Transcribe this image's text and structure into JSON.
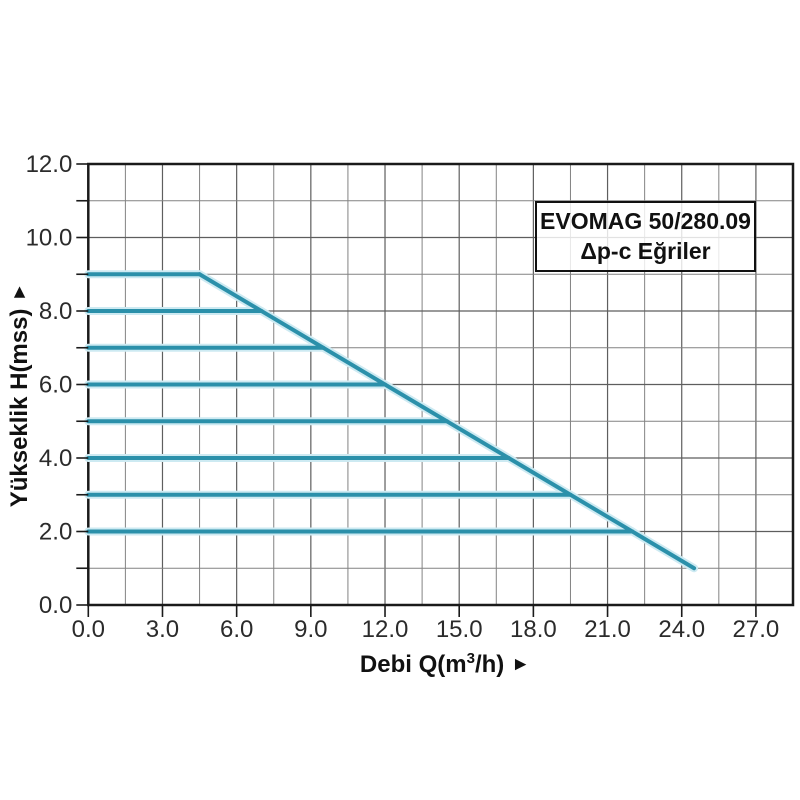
{
  "page": {
    "background": "#ffffff"
  },
  "chart_data": {
    "type": "line",
    "title": "",
    "legend": {
      "position": "top-right",
      "lines": [
        "EVOMAG 50/280.09",
        "Δp-c Eğriler"
      ]
    },
    "xlabel": {
      "prefix": "Debi Q(m",
      "sup": "3",
      "suffix": "/h)",
      "arrow": "►"
    },
    "ylabel": {
      "text": "Yükseklik H(mss)",
      "arrow": "►"
    },
    "axes": {
      "xlim": [
        0,
        28.5
      ],
      "ylim": [
        0,
        12
      ],
      "x_major_ticks": [
        0,
        3,
        6,
        9,
        12,
        15,
        18,
        21,
        24,
        27
      ],
      "x_major_labels": [
        "0.0",
        "3.0",
        "6.0",
        "9.0",
        "12.0",
        "15.0",
        "18.0",
        "21.0",
        "24.0",
        "27.0"
      ],
      "x_minor_step": 1.5,
      "y_major_ticks": [
        0,
        2,
        4,
        6,
        8,
        10,
        12
      ],
      "y_major_labels": [
        "0.0",
        "2.0",
        "4.0",
        "6.0",
        "8.0",
        "10.0",
        "12.0"
      ],
      "y_minor_step": 1,
      "grid": true
    },
    "series": [
      {
        "name": "max-curve",
        "points": [
          [
            4.5,
            9.0
          ],
          [
            24.5,
            1.0
          ]
        ]
      },
      {
        "name": "dp-c-h9",
        "points": [
          [
            0,
            9.0
          ],
          [
            4.5,
            9.0
          ]
        ]
      },
      {
        "name": "dp-c-h8",
        "points": [
          [
            0,
            8.0
          ],
          [
            7.0,
            8.0
          ]
        ]
      },
      {
        "name": "dp-c-h7",
        "points": [
          [
            0,
            7.0
          ],
          [
            9.5,
            7.0
          ]
        ]
      },
      {
        "name": "dp-c-h6",
        "points": [
          [
            0,
            6.0
          ],
          [
            12.0,
            6.0
          ]
        ]
      },
      {
        "name": "dp-c-h5",
        "points": [
          [
            0,
            5.0
          ],
          [
            14.5,
            5.0
          ]
        ]
      },
      {
        "name": "dp-c-h4",
        "points": [
          [
            0,
            4.0
          ],
          [
            17.0,
            4.0
          ]
        ]
      },
      {
        "name": "dp-c-h3",
        "points": [
          [
            0,
            3.0
          ],
          [
            19.5,
            3.0
          ]
        ]
      },
      {
        "name": "dp-c-h2",
        "points": [
          [
            0,
            2.0
          ],
          [
            22.0,
            2.0
          ]
        ]
      }
    ],
    "colors": {
      "curve": "#2b90aa",
      "curve_halo": "#cdeaf2",
      "grid_minor": "#828282",
      "grid_major": "#5e5e5e",
      "border": "#1a1a1a",
      "tick": "#1a1a1a",
      "text": "#2b2b2b"
    }
  }
}
